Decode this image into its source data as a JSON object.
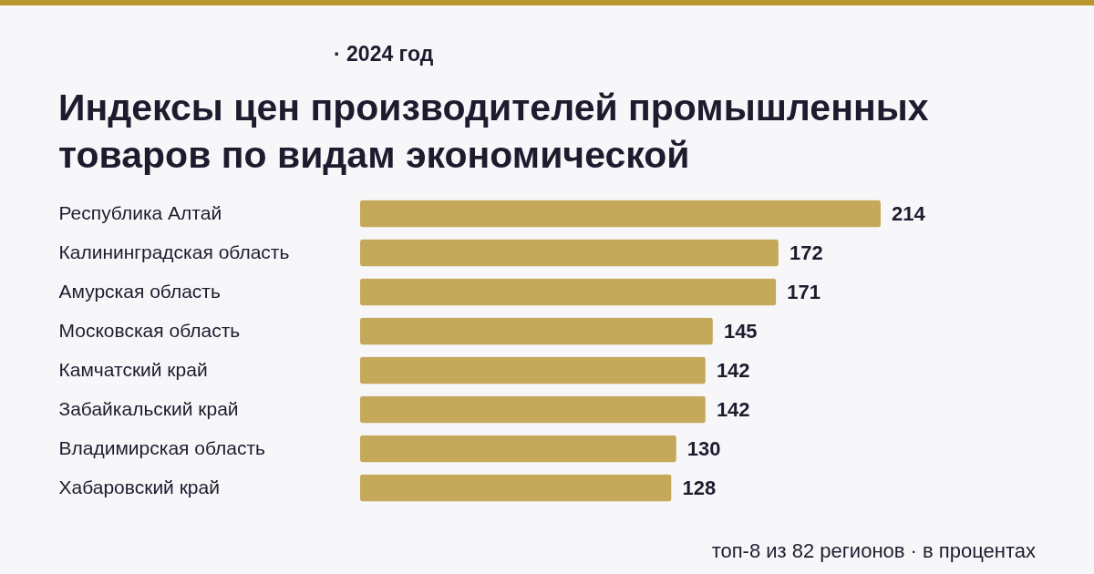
{
  "chart_data": {
    "type": "bar",
    "orientation": "horizontal",
    "subtitle": "· 2024 год",
    "title": "Индексы цен производителей промышленных товаров по видам экономической",
    "categories": [
      "Республика Алтай",
      "Калининградская область",
      "Амурская область",
      "Московская область",
      "Камчатский край",
      "Забайкальский край",
      "Владимирская область",
      "Хабаровский край"
    ],
    "values": [
      214,
      172,
      171,
      145,
      142,
      142,
      130,
      128
    ],
    "color": "#c5a95a",
    "data_labels": true,
    "annotations": [
      "топ-8 из 82 регионов · в процентах"
    ]
  }
}
